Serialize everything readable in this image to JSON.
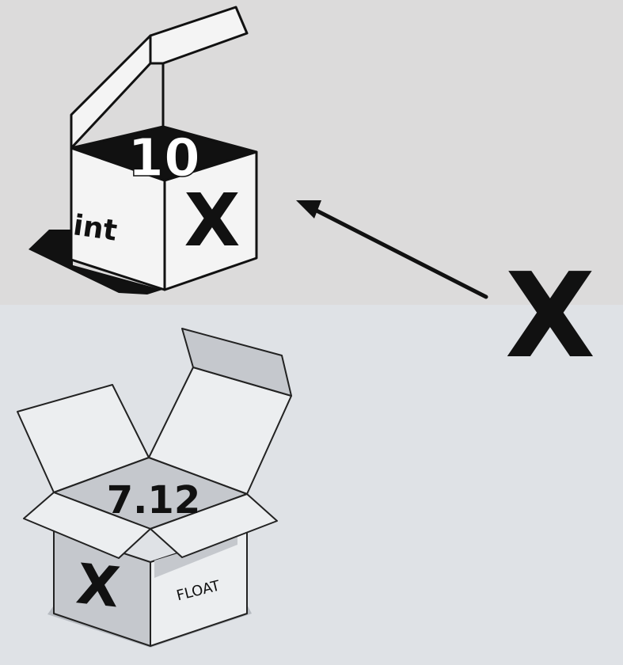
{
  "top_box": {
    "value": "10",
    "type_label": "int",
    "name_label": "X"
  },
  "bottom_box": {
    "value": "7.12",
    "type_label": "FLOAT",
    "name_label": "X"
  },
  "variable_name": "X",
  "colors": {
    "top_band": "#dcdbdb",
    "bottom_band": "#dfe2e6",
    "outline": "#111111",
    "top_box_face": "#f4f4f4",
    "bottom_box_face": "#c5c8cd",
    "bottom_box_light": "#eceef0"
  }
}
